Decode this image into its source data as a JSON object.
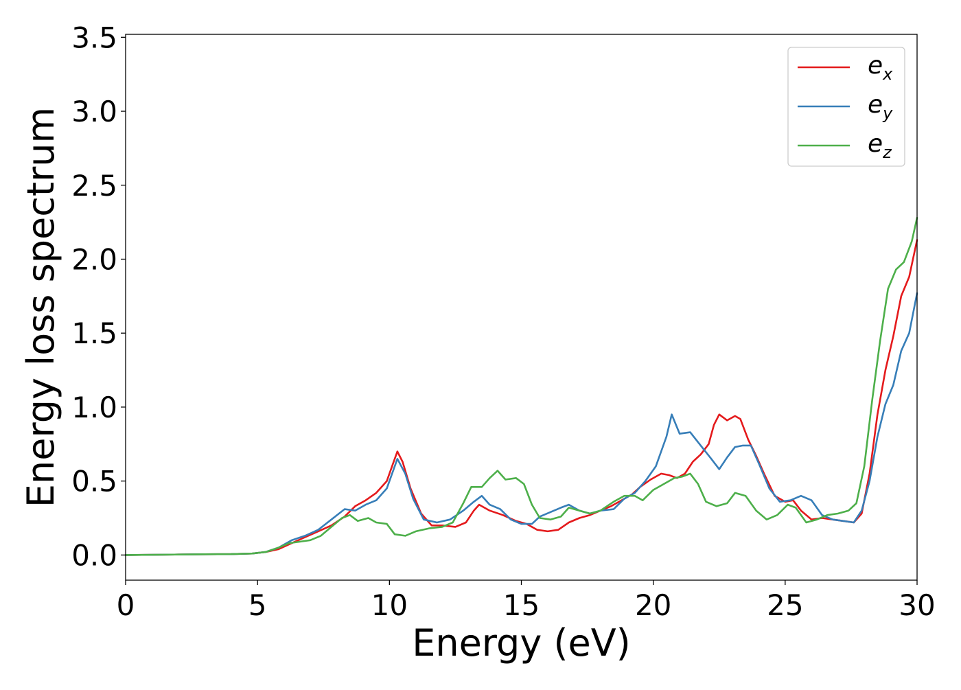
{
  "chart_data": {
    "type": "line",
    "xlabel": "Energy (eV)",
    "ylabel": "Energy loss spectrum",
    "xlim": [
      0,
      30
    ],
    "ylim": [
      -0.17,
      3.52
    ],
    "xticks": [
      "0",
      "5",
      "10",
      "15",
      "20",
      "25",
      "30"
    ],
    "yticks": [
      "0.0",
      "0.5",
      "1.0",
      "1.5",
      "2.0",
      "2.5",
      "3.0",
      "3.5"
    ],
    "grid": false,
    "legend_position": "top-right",
    "series": [
      {
        "name": "e_x",
        "legend_base": "e",
        "legend_sub": "x",
        "color": "#e41a1c",
        "points": [
          [
            0,
            0
          ],
          [
            2,
            0.003
          ],
          [
            3,
            0.005
          ],
          [
            4,
            0.006
          ],
          [
            4.8,
            0.01
          ],
          [
            5.3,
            0.02
          ],
          [
            5.8,
            0.04
          ],
          [
            6.3,
            0.08
          ],
          [
            6.8,
            0.12
          ],
          [
            7.3,
            0.16
          ],
          [
            7.8,
            0.2
          ],
          [
            8.3,
            0.26
          ],
          [
            8.7,
            0.33
          ],
          [
            9.1,
            0.37
          ],
          [
            9.5,
            0.42
          ],
          [
            9.9,
            0.5
          ],
          [
            10.1,
            0.6
          ],
          [
            10.3,
            0.7
          ],
          [
            10.5,
            0.63
          ],
          [
            10.8,
            0.45
          ],
          [
            11.2,
            0.28
          ],
          [
            11.6,
            0.2
          ],
          [
            12,
            0.2
          ],
          [
            12.5,
            0.19
          ],
          [
            12.9,
            0.22
          ],
          [
            13.2,
            0.3
          ],
          [
            13.4,
            0.34
          ],
          [
            13.8,
            0.3
          ],
          [
            14.3,
            0.27
          ],
          [
            14.8,
            0.23
          ],
          [
            15.2,
            0.21
          ],
          [
            15.6,
            0.17
          ],
          [
            16,
            0.16
          ],
          [
            16.4,
            0.17
          ],
          [
            16.8,
            0.22
          ],
          [
            17.2,
            0.25
          ],
          [
            17.6,
            0.27
          ],
          [
            18,
            0.3
          ],
          [
            18.4,
            0.33
          ],
          [
            18.8,
            0.37
          ],
          [
            19.2,
            0.41
          ],
          [
            19.5,
            0.46
          ],
          [
            19.9,
            0.51
          ],
          [
            20.3,
            0.55
          ],
          [
            20.6,
            0.54
          ],
          [
            20.9,
            0.52
          ],
          [
            21.2,
            0.55
          ],
          [
            21.5,
            0.63
          ],
          [
            21.8,
            0.68
          ],
          [
            22.1,
            0.75
          ],
          [
            22.3,
            0.88
          ],
          [
            22.5,
            0.95
          ],
          [
            22.8,
            0.91
          ],
          [
            23.1,
            0.94
          ],
          [
            23.3,
            0.92
          ],
          [
            23.6,
            0.78
          ],
          [
            23.9,
            0.67
          ],
          [
            24.2,
            0.55
          ],
          [
            24.6,
            0.4
          ],
          [
            25,
            0.36
          ],
          [
            25.3,
            0.37
          ],
          [
            25.6,
            0.3
          ],
          [
            26,
            0.24
          ],
          [
            26.4,
            0.25
          ],
          [
            26.8,
            0.24
          ],
          [
            27.2,
            0.23
          ],
          [
            27.6,
            0.22
          ],
          [
            27.9,
            0.28
          ],
          [
            28.2,
            0.55
          ],
          [
            28.5,
            0.95
          ],
          [
            28.8,
            1.25
          ],
          [
            29.1,
            1.48
          ],
          [
            29.4,
            1.75
          ],
          [
            29.7,
            1.88
          ],
          [
            30,
            2.13
          ]
        ]
      },
      {
        "name": "e_y",
        "legend_base": "e",
        "legend_sub": "y",
        "color": "#377eb8",
        "points": [
          [
            0,
            0
          ],
          [
            2,
            0.003
          ],
          [
            3,
            0.005
          ],
          [
            4,
            0.006
          ],
          [
            4.8,
            0.01
          ],
          [
            5.3,
            0.02
          ],
          [
            5.8,
            0.05
          ],
          [
            6.3,
            0.1
          ],
          [
            6.8,
            0.13
          ],
          [
            7.3,
            0.17
          ],
          [
            7.8,
            0.24
          ],
          [
            8.3,
            0.31
          ],
          [
            8.7,
            0.3
          ],
          [
            9.1,
            0.34
          ],
          [
            9.5,
            0.37
          ],
          [
            9.9,
            0.45
          ],
          [
            10.1,
            0.55
          ],
          [
            10.3,
            0.65
          ],
          [
            10.6,
            0.55
          ],
          [
            10.9,
            0.38
          ],
          [
            11.3,
            0.24
          ],
          [
            11.8,
            0.22
          ],
          [
            12.3,
            0.24
          ],
          [
            12.8,
            0.3
          ],
          [
            13.2,
            0.36
          ],
          [
            13.5,
            0.4
          ],
          [
            13.8,
            0.34
          ],
          [
            14.2,
            0.31
          ],
          [
            14.6,
            0.24
          ],
          [
            15,
            0.21
          ],
          [
            15.4,
            0.21
          ],
          [
            15.7,
            0.26
          ],
          [
            16.1,
            0.29
          ],
          [
            16.5,
            0.32
          ],
          [
            16.8,
            0.34
          ],
          [
            17.2,
            0.3
          ],
          [
            17.6,
            0.28
          ],
          [
            18,
            0.3
          ],
          [
            18.5,
            0.31
          ],
          [
            18.9,
            0.38
          ],
          [
            19.3,
            0.42
          ],
          [
            19.7,
            0.5
          ],
          [
            20.1,
            0.6
          ],
          [
            20.5,
            0.8
          ],
          [
            20.7,
            0.95
          ],
          [
            21,
            0.82
          ],
          [
            21.4,
            0.83
          ],
          [
            21.8,
            0.74
          ],
          [
            22.2,
            0.65
          ],
          [
            22.5,
            0.58
          ],
          [
            22.8,
            0.66
          ],
          [
            23.1,
            0.73
          ],
          [
            23.4,
            0.74
          ],
          [
            23.7,
            0.74
          ],
          [
            24,
            0.62
          ],
          [
            24.4,
            0.45
          ],
          [
            24.8,
            0.36
          ],
          [
            25.2,
            0.37
          ],
          [
            25.6,
            0.4
          ],
          [
            26,
            0.37
          ],
          [
            26.4,
            0.27
          ],
          [
            26.8,
            0.24
          ],
          [
            27.2,
            0.23
          ],
          [
            27.6,
            0.22
          ],
          [
            27.9,
            0.3
          ],
          [
            28.2,
            0.5
          ],
          [
            28.5,
            0.8
          ],
          [
            28.8,
            1.02
          ],
          [
            29.1,
            1.15
          ],
          [
            29.4,
            1.38
          ],
          [
            29.7,
            1.5
          ],
          [
            30,
            1.77
          ]
        ]
      },
      {
        "name": "e_z",
        "legend_base": "e",
        "legend_sub": "z",
        "color": "#4daf4a",
        "points": [
          [
            0,
            0
          ],
          [
            2,
            0.003
          ],
          [
            3,
            0.005
          ],
          [
            4,
            0.006
          ],
          [
            4.8,
            0.01
          ],
          [
            5.3,
            0.02
          ],
          [
            5.8,
            0.05
          ],
          [
            6.2,
            0.08
          ],
          [
            6.6,
            0.09
          ],
          [
            7,
            0.1
          ],
          [
            7.4,
            0.13
          ],
          [
            7.8,
            0.19
          ],
          [
            8.2,
            0.25
          ],
          [
            8.5,
            0.27
          ],
          [
            8.8,
            0.23
          ],
          [
            9.2,
            0.25
          ],
          [
            9.5,
            0.22
          ],
          [
            9.9,
            0.21
          ],
          [
            10.2,
            0.14
          ],
          [
            10.6,
            0.13
          ],
          [
            11,
            0.16
          ],
          [
            11.5,
            0.18
          ],
          [
            12,
            0.19
          ],
          [
            12.4,
            0.22
          ],
          [
            12.8,
            0.35
          ],
          [
            13.1,
            0.46
          ],
          [
            13.5,
            0.46
          ],
          [
            13.8,
            0.52
          ],
          [
            14.1,
            0.57
          ],
          [
            14.4,
            0.51
          ],
          [
            14.8,
            0.52
          ],
          [
            15.1,
            0.48
          ],
          [
            15.4,
            0.34
          ],
          [
            15.7,
            0.25
          ],
          [
            16.1,
            0.24
          ],
          [
            16.5,
            0.26
          ],
          [
            16.8,
            0.32
          ],
          [
            17.2,
            0.3
          ],
          [
            17.6,
            0.28
          ],
          [
            18,
            0.3
          ],
          [
            18.5,
            0.36
          ],
          [
            18.9,
            0.4
          ],
          [
            19.3,
            0.4
          ],
          [
            19.6,
            0.37
          ],
          [
            20,
            0.44
          ],
          [
            20.4,
            0.48
          ],
          [
            20.8,
            0.52
          ],
          [
            21.1,
            0.53
          ],
          [
            21.4,
            0.55
          ],
          [
            21.7,
            0.48
          ],
          [
            22,
            0.36
          ],
          [
            22.4,
            0.33
          ],
          [
            22.8,
            0.35
          ],
          [
            23.1,
            0.42
          ],
          [
            23.5,
            0.4
          ],
          [
            23.9,
            0.3
          ],
          [
            24.3,
            0.24
          ],
          [
            24.7,
            0.27
          ],
          [
            25.1,
            0.34
          ],
          [
            25.4,
            0.32
          ],
          [
            25.8,
            0.22
          ],
          [
            26.2,
            0.24
          ],
          [
            26.6,
            0.27
          ],
          [
            27,
            0.28
          ],
          [
            27.4,
            0.3
          ],
          [
            27.7,
            0.35
          ],
          [
            28,
            0.6
          ],
          [
            28.3,
            1.05
          ],
          [
            28.6,
            1.45
          ],
          [
            28.9,
            1.8
          ],
          [
            29.2,
            1.93
          ],
          [
            29.5,
            1.98
          ],
          [
            29.8,
            2.12
          ],
          [
            30,
            2.28
          ]
        ]
      }
    ]
  }
}
